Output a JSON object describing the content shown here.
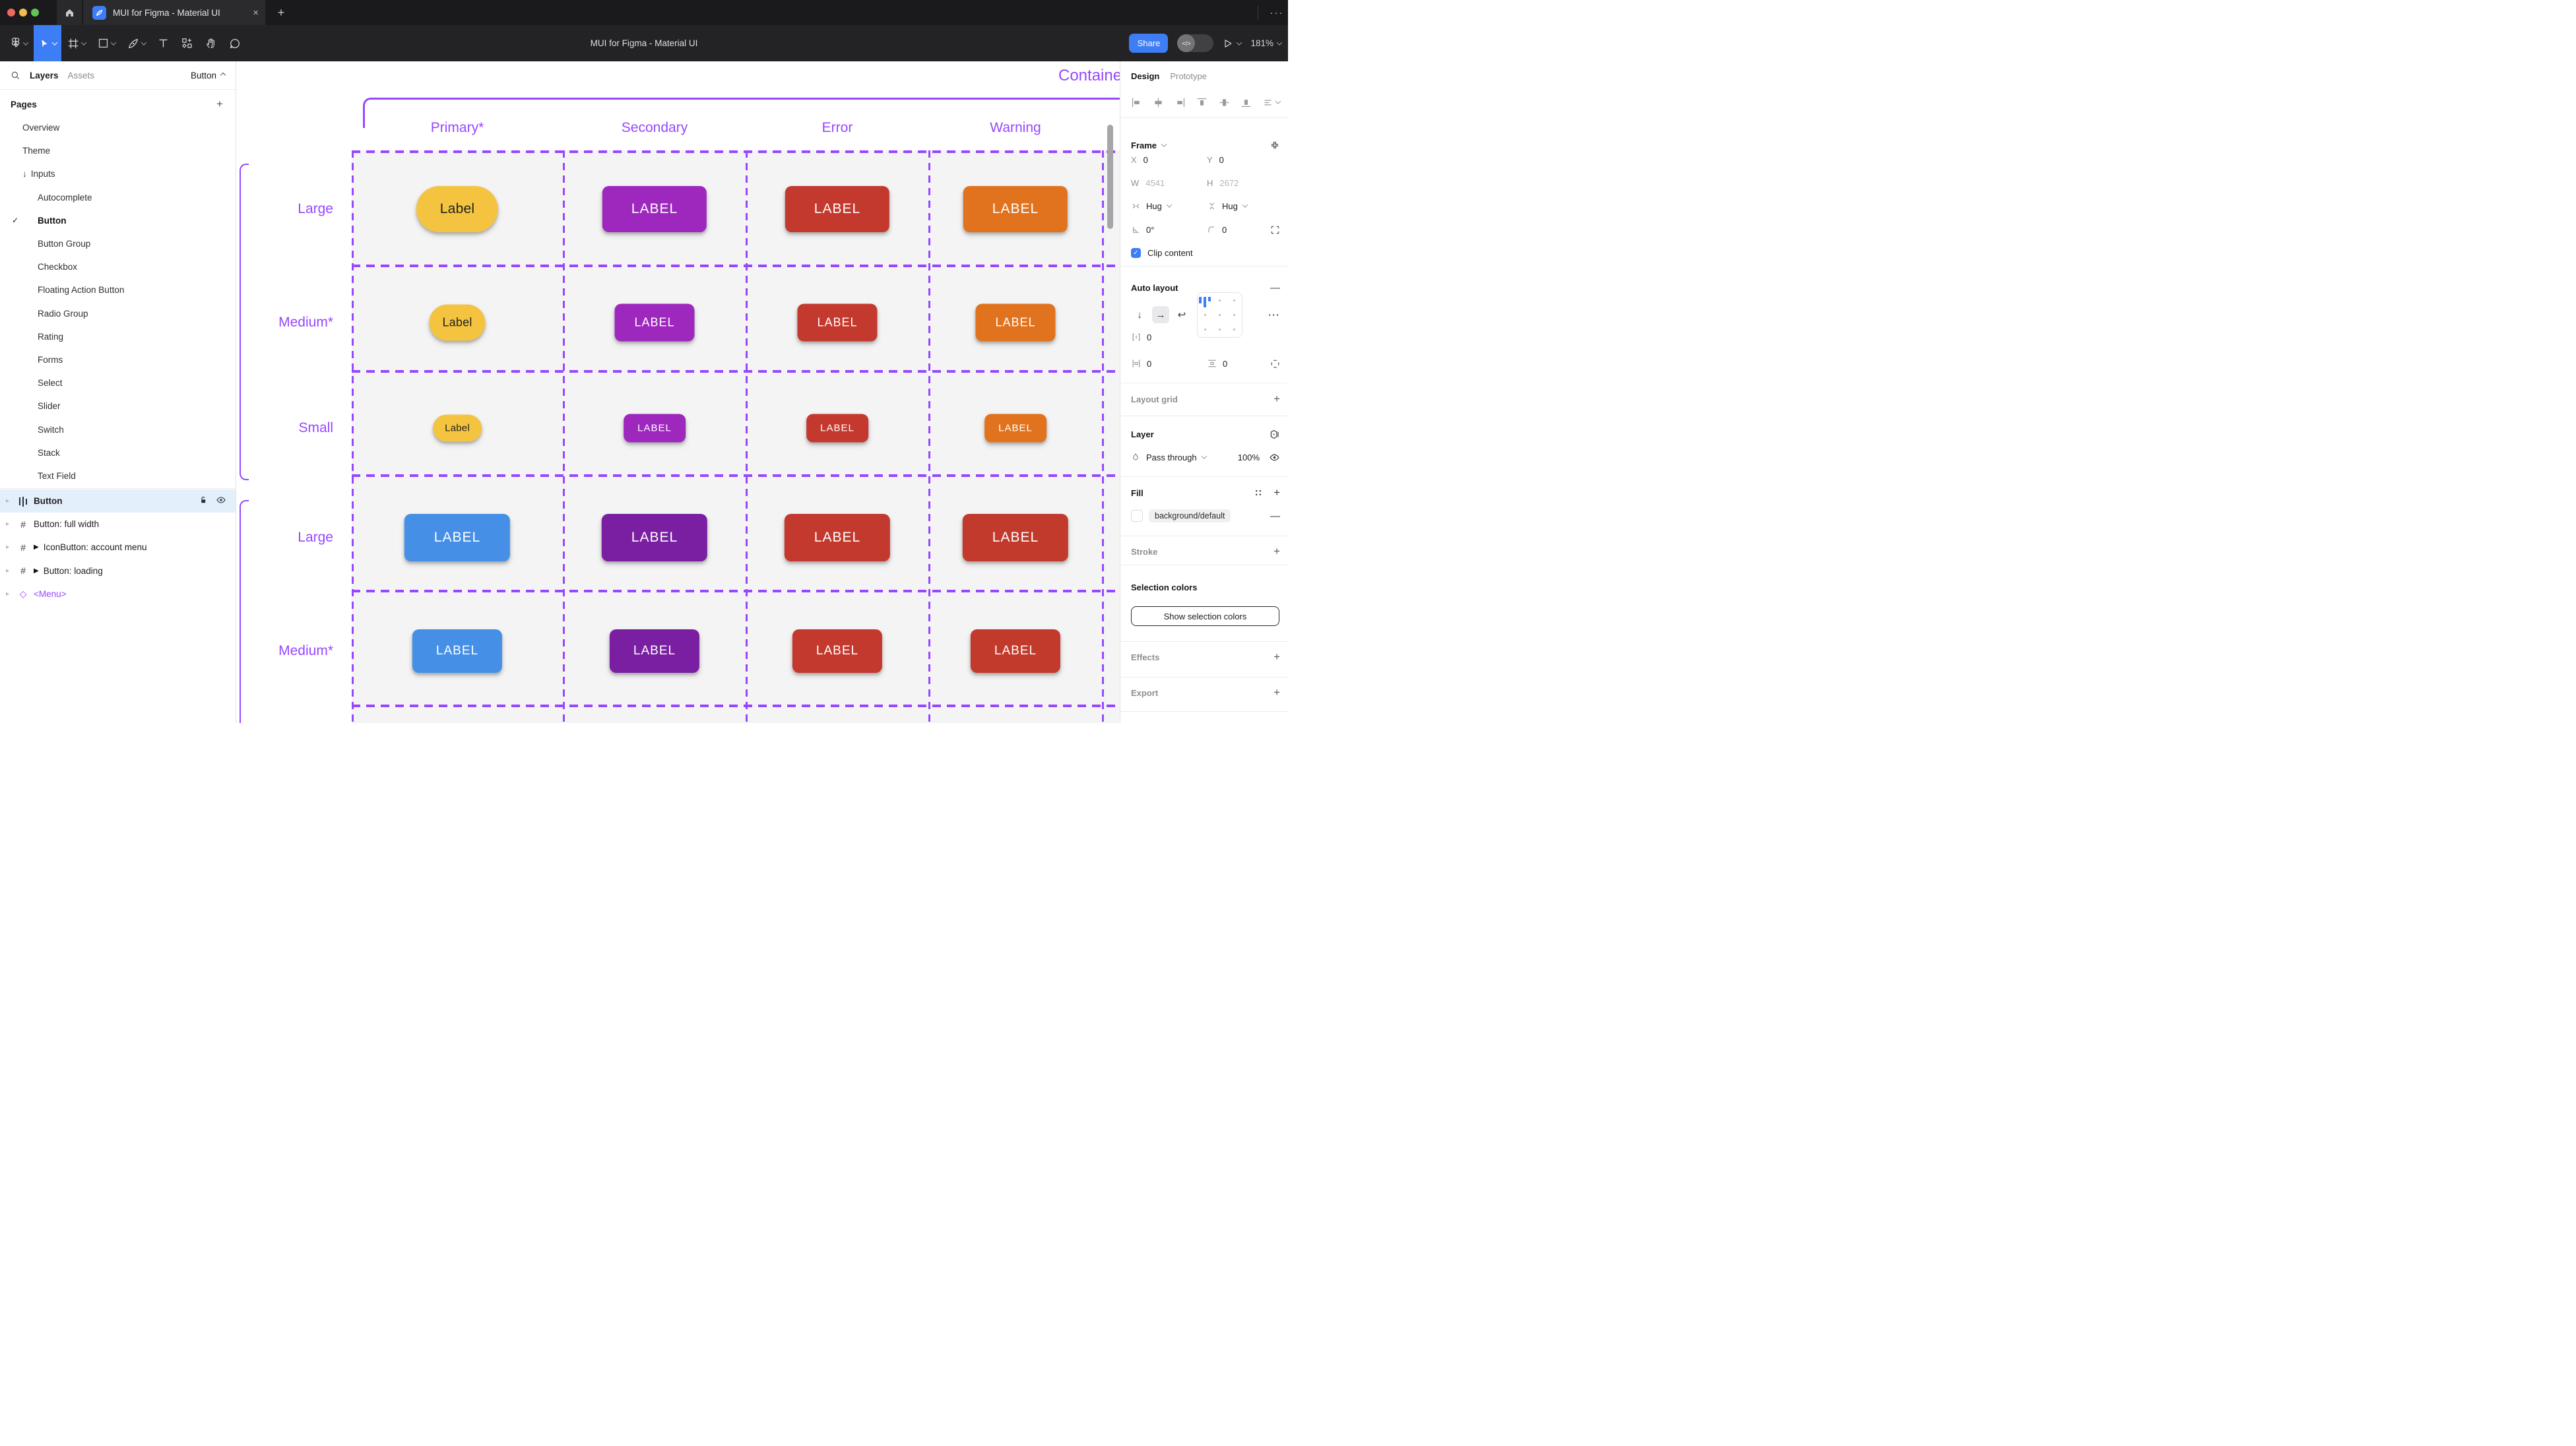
{
  "colors": {
    "accent_blue": "#3D7DF5",
    "annotation_purple": "#9747FF",
    "selected_row_blue": "#E4EFFC",
    "traffic_red": "#EE6A5F",
    "traffic_yellow": "#F5BD4F",
    "traffic_green": "#61C454"
  },
  "titlebar": {
    "tab_title": "MUI for Figma - Material UI",
    "close_label": "×",
    "new_tab_label": "+",
    "more_label": "···"
  },
  "toolbar": {
    "window_title": "MUI for Figma - Material UI",
    "share_label": "Share",
    "devmode_label": "</>",
    "zoom_level": "181%"
  },
  "left_panel": {
    "tab_layers": "Layers",
    "tab_assets": "Assets",
    "page_indicator": "Button",
    "pages_header": "Pages",
    "add_page_label": "+",
    "pages": [
      {
        "label": "Overview",
        "indent": 1
      },
      {
        "label": "Theme",
        "indent": 1
      },
      {
        "label": "Inputs",
        "indent": 1,
        "arrow": "↓"
      },
      {
        "label": "Autocomplete",
        "indent": 2
      },
      {
        "label": "Button",
        "indent": 2,
        "checked": true,
        "bold": true
      },
      {
        "label": "Button Group",
        "indent": 2
      },
      {
        "label": "Checkbox",
        "indent": 2
      },
      {
        "label": "Floating Action Button",
        "indent": 2
      },
      {
        "label": "Radio Group",
        "indent": 2
      },
      {
        "label": "Rating",
        "indent": 2
      },
      {
        "label": "Forms",
        "indent": 2
      },
      {
        "label": "Select",
        "indent": 2
      },
      {
        "label": "Slider",
        "indent": 2
      },
      {
        "label": "Switch",
        "indent": 2
      },
      {
        "label": "Stack",
        "indent": 2
      },
      {
        "label": "Text Field",
        "indent": 2
      }
    ],
    "layers": [
      {
        "label": "Button",
        "icon": "autolayout",
        "selected": true
      },
      {
        "label": "Button: full width",
        "icon": "frame"
      },
      {
        "label": "IconButton: account menu",
        "icon": "frame",
        "play": true
      },
      {
        "label": "Button: loading",
        "icon": "frame",
        "play": true
      },
      {
        "label": "<Menu>",
        "icon": "diamond",
        "purple": true
      }
    ]
  },
  "right_panel": {
    "tab_design": "Design",
    "tab_prototype": "Prototype",
    "frame": {
      "title": "Frame",
      "x_label": "X",
      "x_value": "0",
      "y_label": "Y",
      "y_value": "0",
      "w_label": "W",
      "w_value": "4541",
      "h_label": "H",
      "h_value": "2672",
      "hug_h": "Hug",
      "hug_v": "Hug",
      "rotation": "0°",
      "corner_radius": "0",
      "clip_label": "Clip content"
    },
    "auto_layout": {
      "title": "Auto layout",
      "gap": "0",
      "padding_h": "0",
      "padding_v": "0",
      "more_label": "···"
    },
    "layout_grid": {
      "title": "Layout grid"
    },
    "layer": {
      "title": "Layer",
      "blend_mode": "Pass through",
      "opacity": "100%"
    },
    "fill": {
      "title": "Fill",
      "style_name": "background/default"
    },
    "stroke": {
      "title": "Stroke"
    },
    "selection_colors": {
      "title": "Selection colors",
      "button_label": "Show selection colors"
    },
    "effects": {
      "title": "Effects"
    },
    "export_section": {
      "title": "Export"
    }
  },
  "canvas": {
    "section_title": "Contained",
    "columns": [
      "Primary*",
      "Secondary",
      "Error",
      "Warning"
    ],
    "groups": [
      {
        "rows": [
          {
            "label": "Large",
            "buttons": [
              {
                "text": "Label",
                "bg": "#F4C441",
                "fg": "#1F1F1F",
                "size": "lg",
                "pill": true
              },
              {
                "text": "LABEL",
                "bg": "#9E28BE",
                "fg": "#FFFFFF",
                "size": "lg"
              },
              {
                "text": "LABEL",
                "bg": "#C4392D",
                "fg": "#FFFFFF",
                "size": "lg"
              },
              {
                "text": "LABEL",
                "bg": "#E2731E",
                "fg": "#FFFFFF",
                "size": "lg"
              }
            ]
          },
          {
            "label": "Medium*",
            "buttons": [
              {
                "text": "Label",
                "bg": "#F4C441",
                "fg": "#1F1F1F",
                "size": "md",
                "pill": true
              },
              {
                "text": "LABEL",
                "bg": "#9E28BE",
                "fg": "#FFFFFF",
                "size": "md"
              },
              {
                "text": "LABEL",
                "bg": "#C4392D",
                "fg": "#FFFFFF",
                "size": "md"
              },
              {
                "text": "LABEL",
                "bg": "#E2731E",
                "fg": "#FFFFFF",
                "size": "md"
              }
            ]
          },
          {
            "label": "Small",
            "buttons": [
              {
                "text": "Label",
                "bg": "#F4C441",
                "fg": "#1F1F1F",
                "size": "sm",
                "pill": true
              },
              {
                "text": "LABEL",
                "bg": "#9E28BE",
                "fg": "#FFFFFF",
                "size": "sm"
              },
              {
                "text": "LABEL",
                "bg": "#C4392D",
                "fg": "#FFFFFF",
                "size": "sm"
              },
              {
                "text": "LABEL",
                "bg": "#E2731E",
                "fg": "#FFFFFF",
                "size": "sm"
              }
            ]
          }
        ]
      },
      {
        "rows": [
          {
            "label": "Large",
            "buttons": [
              {
                "text": "LABEL",
                "bg": "#4590E6",
                "fg": "#FFFFFF",
                "size": "lg2"
              },
              {
                "text": "LABEL",
                "bg": "#7A1FA2",
                "fg": "#FFFFFF",
                "size": "lg2"
              },
              {
                "text": "LABEL",
                "bg": "#C4392D",
                "fg": "#FFFFFF",
                "size": "lg2"
              },
              {
                "text": "LABEL",
                "bg": "#C13A2C",
                "fg": "#FFFFFF",
                "size": "lg2"
              }
            ]
          },
          {
            "label": "Medium*",
            "buttons": [
              {
                "text": "LABEL",
                "bg": "#4590E6",
                "fg": "#FFFFFF",
                "size": "md2"
              },
              {
                "text": "LABEL",
                "bg": "#7A1FA2",
                "fg": "#FFFFFF",
                "size": "md2"
              },
              {
                "text": "LABEL",
                "bg": "#C4392D",
                "fg": "#FFFFFF",
                "size": "md2"
              },
              {
                "text": "LABEL",
                "bg": "#C13A2C",
                "fg": "#FFFFFF",
                "size": "md2"
              }
            ]
          }
        ]
      }
    ]
  }
}
